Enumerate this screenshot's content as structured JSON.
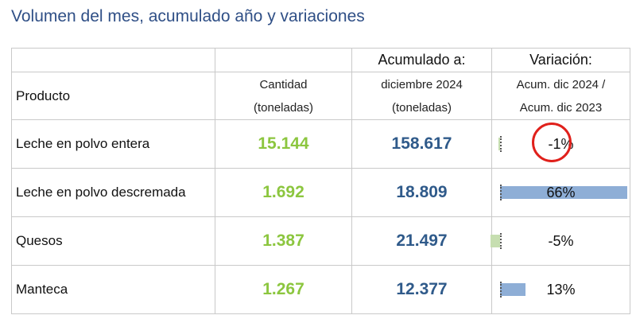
{
  "title": "Volumen del mes, acumulado año y variaciones",
  "headers": {
    "producto": "Producto",
    "cantidad_line1": "Cantidad",
    "cantidad_line2": "(toneladas)",
    "acumulado_line1": "Acumulado a:",
    "acumulado_line2": "diciembre 2024",
    "acumulado_line3": "(toneladas)",
    "variacion_line1": "Variación:",
    "variacion_line2": "Acum. dic 2024 /",
    "variacion_line3": "Acum. dic 2023"
  },
  "rows": [
    {
      "producto": "Leche en polvo entera",
      "cantidad": "15.144",
      "acumulado": "158.617",
      "variacion": "-1%",
      "variacion_value": -1,
      "highlighted": true
    },
    {
      "producto": "Leche en polvo descremada",
      "cantidad": "1.692",
      "acumulado": "18.809",
      "variacion": "66%",
      "variacion_value": 66,
      "highlighted": false
    },
    {
      "producto": "Quesos",
      "cantidad": "1.387",
      "acumulado": "21.497",
      "variacion": "-5%",
      "variacion_value": -5,
      "highlighted": false
    },
    {
      "producto": "Manteca",
      "cantidad": "1.267",
      "acumulado": "12.377",
      "variacion": "13%",
      "variacion_value": 13,
      "highlighted": false
    }
  ],
  "colors": {
    "title": "#2f4f86",
    "cantidad": "#8cc63f",
    "acumulado": "#2f5a8a",
    "bar_positive": "#8eaed6",
    "bar_negative": "#c6deb0",
    "highlight_circle": "#e0201b"
  }
}
